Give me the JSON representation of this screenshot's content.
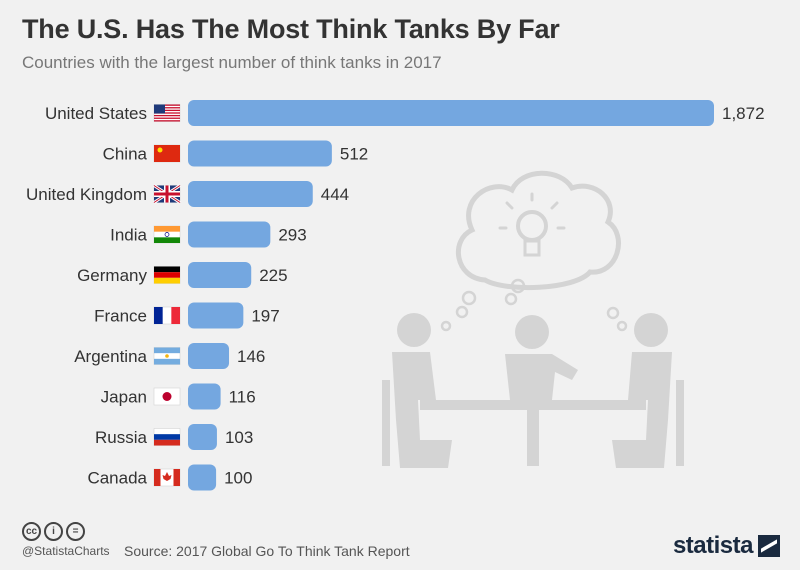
{
  "header": {
    "title": "The U.S. Has The Most Think Tanks By Far",
    "subtitle": "Countries with the largest number of think tanks in 2017"
  },
  "footer": {
    "handle": "@StatistaCharts",
    "source": "Source: 2017 Global Go To Think Tank Report",
    "brand": "statista",
    "license_icons": [
      "cc-icon",
      "attribution-icon",
      "no-derivatives-icon"
    ]
  },
  "colors": {
    "bar": "#74a7e0",
    "background": "#f1f1f1",
    "illustration": "#d4d4d4"
  },
  "chart_data": {
    "type": "bar",
    "orientation": "horizontal",
    "categories": [
      "United States",
      "China",
      "United Kingdom",
      "India",
      "Germany",
      "France",
      "Argentina",
      "Japan",
      "Russia",
      "Canada"
    ],
    "values": [
      1872,
      512,
      444,
      293,
      225,
      197,
      146,
      116,
      103,
      100
    ],
    "value_labels": [
      "1,872",
      "512",
      "444",
      "293",
      "225",
      "197",
      "146",
      "116",
      "103",
      "100"
    ],
    "flags": [
      "us-flag-icon",
      "china-flag-icon",
      "uk-flag-icon",
      "india-flag-icon",
      "germany-flag-icon",
      "france-flag-icon",
      "argentina-flag-icon",
      "japan-flag-icon",
      "russia-flag-icon",
      "canada-flag-icon"
    ],
    "title": "The U.S. Has The Most Think Tanks By Far",
    "xlabel": "",
    "ylabel": "",
    "xlim": [
      0,
      1872
    ],
    "grid": false,
    "legend": "none"
  }
}
